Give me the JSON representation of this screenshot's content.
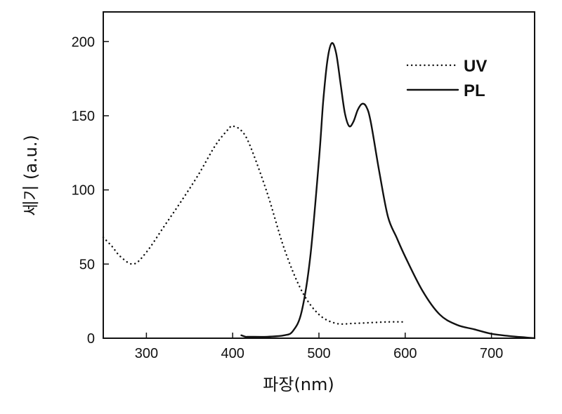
{
  "chart_data": {
    "type": "line",
    "title": "",
    "xlabel": "파장(nm)",
    "ylabel": "세기 (a.u.)",
    "xlim": [
      250,
      750
    ],
    "ylim": [
      0,
      220
    ],
    "xticks": [
      300,
      400,
      500,
      600,
      700
    ],
    "yticks": [
      0,
      50,
      100,
      150,
      200
    ],
    "grid": false,
    "legend_position": "top-right",
    "series": [
      {
        "name": "UV",
        "style": "dotted",
        "color": "#111111",
        "x": [
          250,
          260,
          270,
          285,
          300,
          320,
          340,
          360,
          380,
          395,
          400,
          410,
          420,
          440,
          460,
          480,
          500,
          520,
          540,
          560,
          580,
          600
        ],
        "y": [
          68,
          62,
          55,
          50,
          58,
          75,
          92,
          110,
          130,
          141,
          143,
          140,
          130,
          98,
          60,
          32,
          16,
          10,
          10,
          10.5,
          11,
          11
        ]
      },
      {
        "name": "PL",
        "style": "solid",
        "color": "#111111",
        "x": [
          410,
          415,
          420,
          440,
          460,
          470,
          480,
          490,
          500,
          505,
          510,
          515,
          520,
          525,
          530,
          535,
          540,
          545,
          550,
          555,
          560,
          570,
          580,
          590,
          600,
          620,
          640,
          660,
          680,
          700,
          720,
          740,
          750
        ],
        "y": [
          2,
          1,
          1,
          1,
          2,
          5,
          18,
          55,
          120,
          160,
          188,
          199,
          192,
          172,
          152,
          143,
          146,
          154,
          158,
          156,
          146,
          112,
          82,
          68,
          55,
          32,
          16,
          9,
          6,
          3,
          1.5,
          0.5,
          0
        ]
      }
    ]
  }
}
